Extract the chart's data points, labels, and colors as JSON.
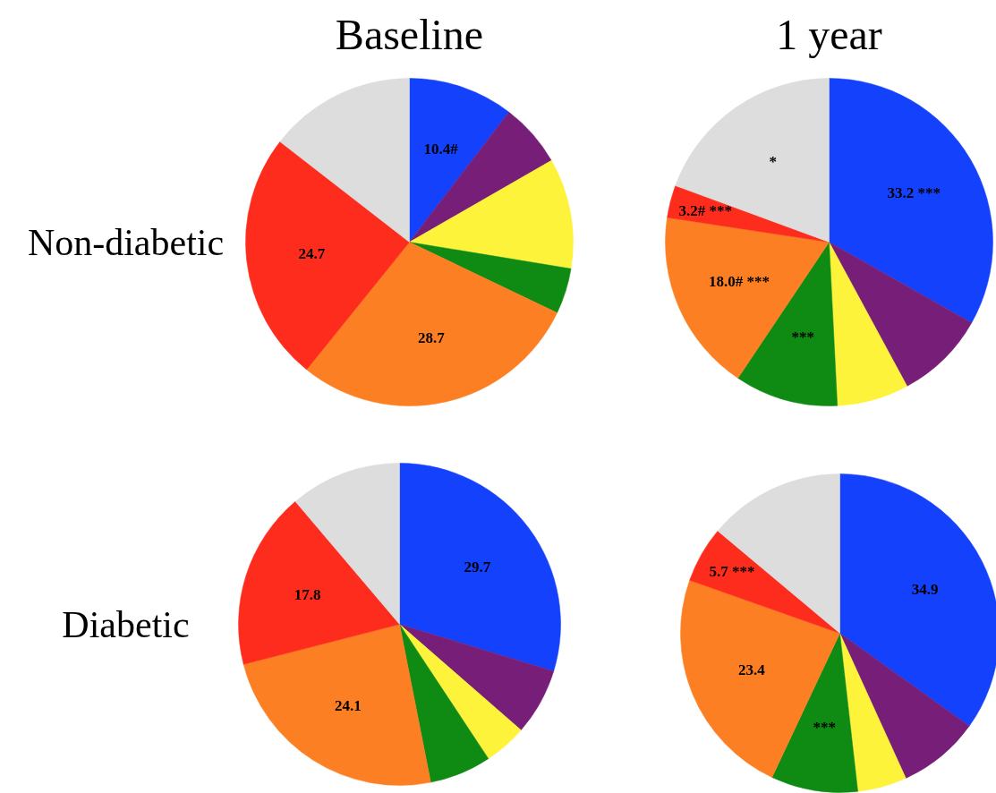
{
  "chart_data": [
    {
      "type": "pie",
      "title": "Baseline",
      "ylabel": "Non-diabetic",
      "categories": [
        null,
        null,
        null,
        null,
        null,
        null,
        null
      ],
      "values": [
        10.4,
        6.3,
        10.9,
        4.5,
        28.7,
        24.7,
        14.5
      ],
      "colors": [
        "#1441fb",
        "#761e78",
        "#fdf33a",
        "#0f8a12",
        "#fd7f23",
        "#fd2c1c",
        "#dddddd"
      ],
      "value_labels": [
        "10.4#",
        null,
        null,
        null,
        "28.7",
        "24.7",
        null
      ]
    },
    {
      "type": "pie",
      "title": "1 year",
      "categories": [
        null,
        null,
        null,
        null,
        null,
        null,
        null
      ],
      "values": [
        33.2,
        8.9,
        7.1,
        10.2,
        18.0,
        3.2,
        19.4
      ],
      "colors": [
        "#1441fb",
        "#761e78",
        "#fdf33a",
        "#0f8a12",
        "#fd7f23",
        "#fd2c1c",
        "#dddddd"
      ],
      "value_labels": [
        "33.2 ***",
        null,
        null,
        "***",
        "18.0# ***",
        "3.2# ***",
        "*"
      ]
    },
    {
      "type": "pie",
      "ylabel": "Diabetic",
      "categories": [
        null,
        null,
        null,
        null,
        null,
        null,
        null
      ],
      "values": [
        29.7,
        6.7,
        4.3,
        6.2,
        24.1,
        17.8,
        11.2
      ],
      "colors": [
        "#1441fb",
        "#761e78",
        "#fdf33a",
        "#0f8a12",
        "#fd7f23",
        "#fd2c1c",
        "#dddddd"
      ],
      "value_labels": [
        "29.7",
        null,
        null,
        null,
        "24.1",
        "17.8",
        null
      ]
    },
    {
      "type": "pie",
      "categories": [
        null,
        null,
        null,
        null,
        null,
        null,
        null
      ],
      "values": [
        34.9,
        8.3,
        5.0,
        8.8,
        23.4,
        5.7,
        13.9
      ],
      "colors": [
        "#1441fb",
        "#761e78",
        "#fdf33a",
        "#0f8a12",
        "#fd7f23",
        "#fd2c1c",
        "#dddddd"
      ],
      "value_labels": [
        "34.9",
        null,
        null,
        "***",
        "23.4",
        "5.7 ***",
        null
      ]
    }
  ]
}
